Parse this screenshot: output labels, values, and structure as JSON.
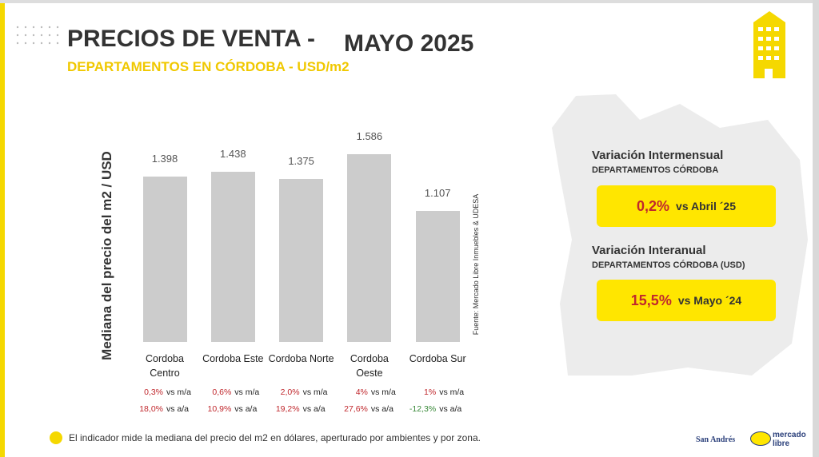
{
  "header": {
    "title_part1": "PRECIOS DE VENTA -",
    "title_part2": "MAYO 2025",
    "subtitle": "DEPARTAMENTOS EN CÓRDOBA - USD/m2"
  },
  "chart_data": {
    "type": "bar",
    "ylabel": "Mediana del precio del m2 / USD",
    "source": "Fuente: Mercado Libre Inmuebles & UDESA",
    "categories": [
      "Cordoba Centro",
      "Cordoba Este",
      "Cordoba Norte",
      "Cordoba Oeste",
      "Cordoba Sur"
    ],
    "values": [
      1398,
      1438,
      1375,
      1586,
      1107
    ],
    "value_labels": [
      "1.398",
      "1.438",
      "1.375",
      "1.586",
      "1.107"
    ],
    "color": "#cccccc",
    "monthly_change": {
      "label": "vs m/a",
      "values": [
        0.3,
        0.6,
        2.0,
        4,
        1
      ],
      "value_labels": [
        "0,3%",
        "0,6%",
        "2,0%",
        "4%",
        "1%"
      ]
    },
    "annual_change": {
      "label": "vs a/a",
      "values": [
        18.0,
        10.9,
        19.2,
        27.6,
        -12.3
      ],
      "value_labels": [
        "18,0%",
        "10,9%",
        "19,2%",
        "27,6%",
        "-12,3%"
      ]
    },
    "positive_color": "#c0282d",
    "negative_color": "#3a8a3a"
  },
  "panels": [
    {
      "title": "Variación Intermensual",
      "subtitle": "DEPARTAMENTOS CÓRDOBA",
      "value": "0,2%",
      "comparison": "vs Abril ´25"
    },
    {
      "title": "Variación Interanual",
      "subtitle": "DEPARTAMENTOS CÓRDOBA (USD)",
      "value": "15,5%",
      "comparison": "vs Mayo ´24"
    }
  ],
  "footnote": "El indicador mide la mediana del precio del m2 en dólares, aperturado por ambientes y por zona.",
  "logos": {
    "university": "San Andrés",
    "company": "mercado libre"
  }
}
